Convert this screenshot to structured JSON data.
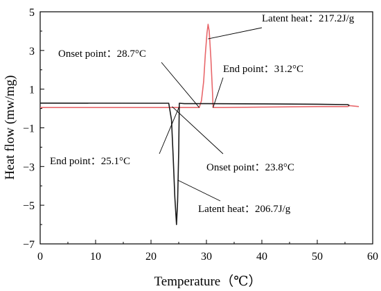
{
  "chart_data": {
    "type": "line",
    "xlabel": "Temperature（℃）",
    "ylabel": "Heat flow (mw/mg)",
    "xlim": [
      0,
      60
    ],
    "ylim": [
      -7,
      5
    ],
    "x_ticks": [
      0,
      10,
      20,
      30,
      40,
      50,
      60
    ],
    "y_ticks": [
      -7,
      -5,
      -3,
      -1,
      1,
      3,
      5
    ],
    "grid": false,
    "series": [
      {
        "color": "#e8666a",
        "points": [
          [
            0,
            0.05
          ],
          [
            20,
            0.05
          ],
          [
            28.7,
            0.05
          ],
          [
            29.1,
            0.4
          ],
          [
            29.5,
            1.4
          ],
          [
            29.8,
            2.8
          ],
          [
            30.1,
            3.9
          ],
          [
            30.3,
            4.35
          ],
          [
            30.5,
            4.0
          ],
          [
            30.8,
            2.6
          ],
          [
            31.1,
            0.8
          ],
          [
            31.2,
            0.05
          ],
          [
            33,
            0.05
          ],
          [
            40,
            0.07
          ],
          [
            50,
            0.1
          ],
          [
            55.5,
            0.1
          ],
          [
            55.8,
            0.15
          ],
          [
            57.5,
            0.1
          ]
        ]
      },
      {
        "color": "#1a1a1a",
        "points": [
          [
            0,
            0.28
          ],
          [
            20,
            0.27
          ],
          [
            23.2,
            0.27
          ],
          [
            23.7,
            -0.6
          ],
          [
            24.0,
            -2.5
          ],
          [
            24.3,
            -4.6
          ],
          [
            24.6,
            -6.0
          ],
          [
            24.8,
            -4.8
          ],
          [
            25.0,
            -2.2
          ],
          [
            25.1,
            0.27
          ],
          [
            26,
            0.25
          ],
          [
            30,
            0.25
          ],
          [
            40,
            0.24
          ],
          [
            50,
            0.22
          ],
          [
            55.5,
            0.2
          ],
          [
            55.8,
            0.15
          ]
        ]
      }
    ],
    "annotations": [
      {
        "text": "Latent heat：217.2J/g",
        "target": [
          30.3,
          3.6
        ]
      },
      {
        "text": "Onset point：28.7°C",
        "target": [
          28.7,
          0.05
        ]
      },
      {
        "text": "End point：31.2°C",
        "target": [
          31.2,
          0.05
        ]
      },
      {
        "text": "End point：25.1°C",
        "target": [
          25.1,
          0.1
        ]
      },
      {
        "text": "Onset point：23.8°C",
        "target": [
          23.8,
          0.1
        ]
      },
      {
        "text": "Latent heat：206.7J/g",
        "target": [
          24.8,
          -3.7
        ]
      }
    ]
  }
}
